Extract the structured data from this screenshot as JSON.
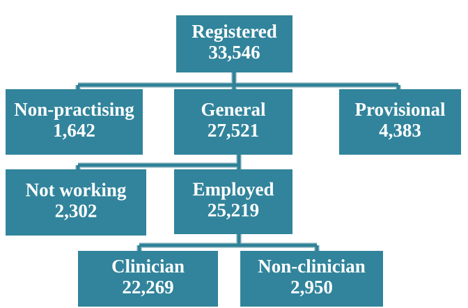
{
  "nodes": [
    {
      "label": "Registered",
      "value": "33,546"
    },
    {
      "label": "Non-practising",
      "value": "1,642"
    },
    {
      "label": "General",
      "value": "27,521"
    },
    {
      "label": "Provisional",
      "value": "4,383"
    },
    {
      "label": "Not working",
      "value": "2,302"
    },
    {
      "label": "Employed",
      "value": "25,219"
    },
    {
      "label": "Clinician",
      "value": "22,269"
    },
    {
      "label": "Non-clinician",
      "value": "2,950"
    }
  ]
}
